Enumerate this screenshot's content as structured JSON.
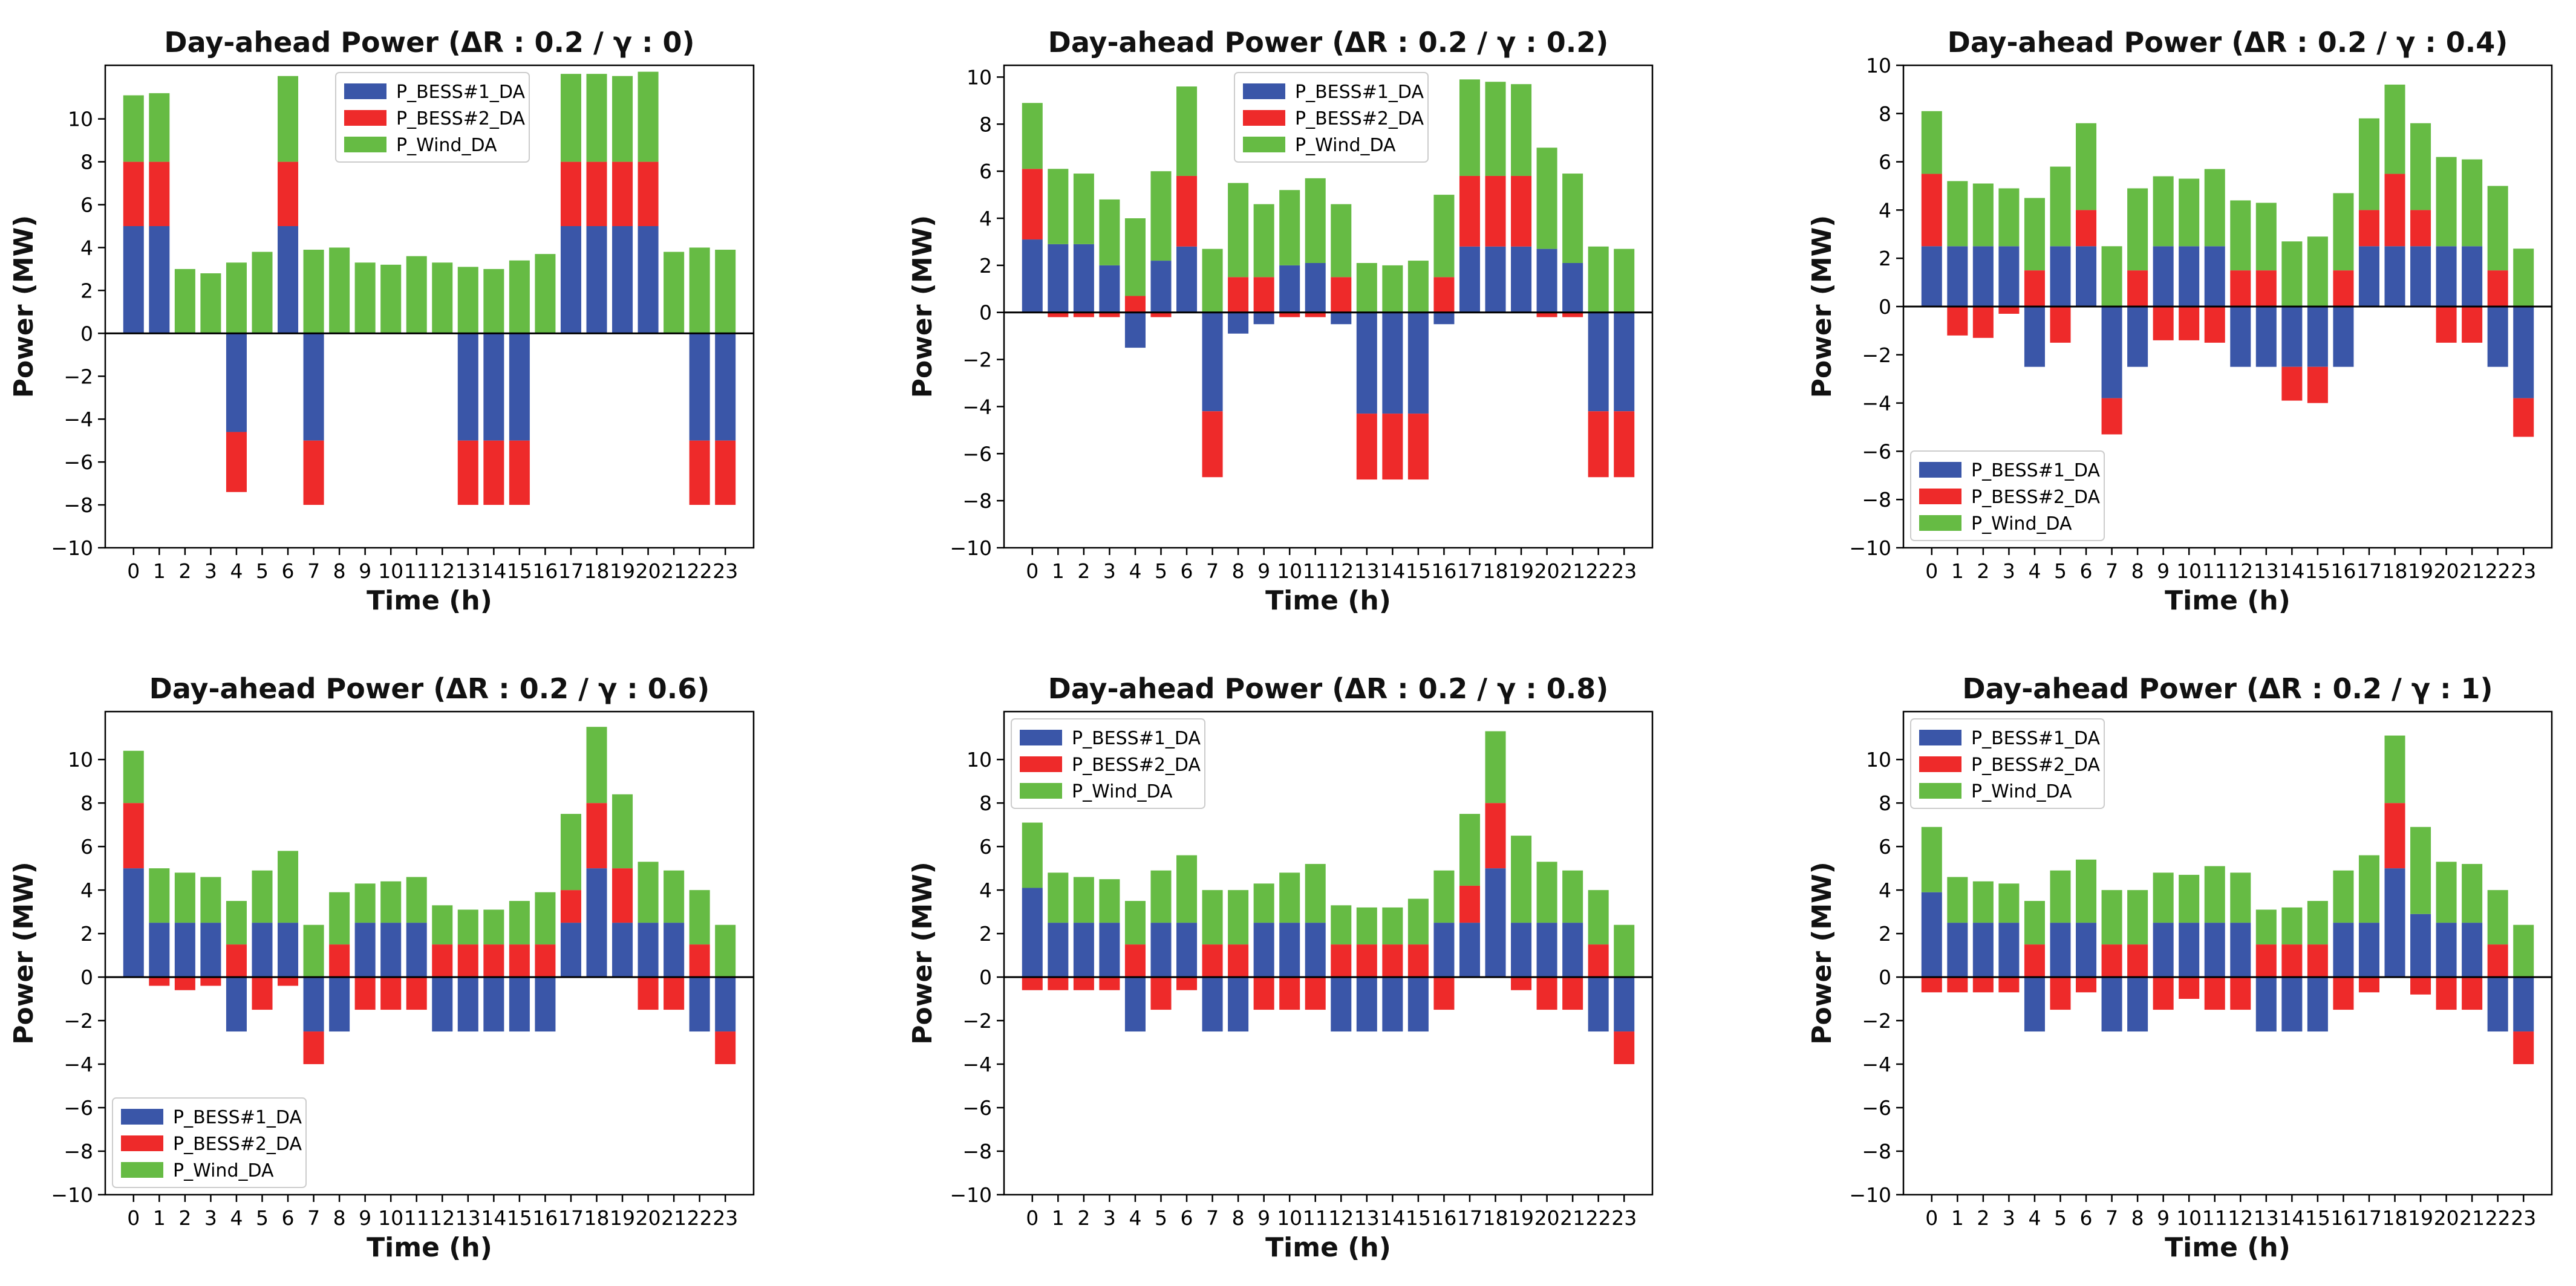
{
  "legend_labels": [
    "P_BESS#1_DA",
    "P_BESS#2_DA",
    "P_Wind_DA"
  ],
  "colors": {
    "bess1": "#3a56a8",
    "bess2": "#ee2a2a",
    "wind": "#66bb44",
    "axis": "#000000"
  },
  "chart_data": [
    {
      "type": "bar",
      "stacked": true,
      "title": "Day-ahead Power (ΔR : 0.2 / γ : 0)",
      "xlabel": "Time (h)",
      "ylabel": "Power (MW)",
      "ylim": [
        -10,
        12.5
      ],
      "yticks": [
        -10,
        -8,
        -6,
        -4,
        -2,
        0,
        2,
        4,
        6,
        8,
        10
      ],
      "categories": [
        "0",
        "1",
        "2",
        "3",
        "4",
        "5",
        "6",
        "7",
        "8",
        "9",
        "10",
        "11",
        "12",
        "13",
        "14",
        "15",
        "16",
        "17",
        "18",
        "19",
        "20",
        "21",
        "22",
        "23"
      ],
      "legend_position": "top-center",
      "series": [
        {
          "name": "P_BESS#1_DA",
          "values": [
            5,
            5,
            0,
            0,
            -4.6,
            0,
            5,
            -5,
            0,
            0,
            0,
            0,
            0,
            -5,
            -5,
            -5,
            0,
            5,
            5,
            5,
            5,
            0,
            -5,
            -5
          ]
        },
        {
          "name": "P_BESS#2_DA",
          "values": [
            3,
            3,
            0,
            0,
            -2.8,
            0,
            3,
            -3,
            0,
            0,
            0,
            0,
            0,
            -3,
            -3,
            -3,
            0,
            3,
            3,
            3,
            3,
            0,
            -3,
            -3
          ]
        },
        {
          "name": "P_Wind_DA",
          "values": [
            3.1,
            3.2,
            3,
            2.8,
            3.3,
            3.8,
            4,
            3.9,
            4,
            3.3,
            3.2,
            3.6,
            3.3,
            3.1,
            3,
            3.4,
            3.7,
            4.1,
            4.1,
            4,
            4.2,
            3.8,
            4,
            3.9
          ]
        }
      ]
    },
    {
      "type": "bar",
      "stacked": true,
      "title": "Day-ahead Power (ΔR : 0.2 / γ : 0.2)",
      "xlabel": "Time (h)",
      "ylabel": "Power (MW)",
      "ylim": [
        -10,
        10.5
      ],
      "yticks": [
        -10,
        -8,
        -6,
        -4,
        -2,
        0,
        2,
        4,
        6,
        8,
        10
      ],
      "categories": [
        "0",
        "1",
        "2",
        "3",
        "4",
        "5",
        "6",
        "7",
        "8",
        "9",
        "10",
        "11",
        "12",
        "13",
        "14",
        "15",
        "16",
        "17",
        "18",
        "19",
        "20",
        "21",
        "22",
        "23"
      ],
      "legend_position": "top-center",
      "series": [
        {
          "name": "P_BESS#1_DA",
          "values": [
            3.1,
            2.9,
            2.9,
            2,
            -1.5,
            2.2,
            2.8,
            -4.2,
            -0.9,
            -0.5,
            2,
            2.1,
            -0.5,
            -4.3,
            -4.3,
            -4.3,
            -0.5,
            2.8,
            2.8,
            2.8,
            2.7,
            2.1,
            -4.2,
            -4.2
          ]
        },
        {
          "name": "P_BESS#2_DA",
          "values": [
            3,
            -0.2,
            -0.2,
            -0.2,
            0.7,
            -0.2,
            3,
            -2.8,
            1.5,
            1.5,
            -0.2,
            -0.2,
            1.5,
            -2.8,
            -2.8,
            -2.8,
            1.5,
            3,
            3,
            3,
            -0.2,
            -0.2,
            -2.8,
            -2.8
          ]
        },
        {
          "name": "P_Wind_DA",
          "values": [
            2.8,
            3.2,
            3,
            2.8,
            3.3,
            3.8,
            3.8,
            2.7,
            4,
            3.1,
            3.2,
            3.6,
            3.1,
            2.1,
            2,
            2.2,
            3.5,
            4.1,
            4,
            3.9,
            4.3,
            3.8,
            2.8,
            2.7
          ]
        }
      ]
    },
    {
      "type": "bar",
      "stacked": true,
      "title": "Day-ahead Power (ΔR : 0.2 / γ : 0.4)",
      "xlabel": "Time (h)",
      "ylabel": "Power (MW)",
      "ylim": [
        -10,
        10
      ],
      "yticks": [
        -10,
        -8,
        -6,
        -4,
        -2,
        0,
        2,
        4,
        6,
        8,
        10
      ],
      "categories": [
        "0",
        "1",
        "2",
        "3",
        "4",
        "5",
        "6",
        "7",
        "8",
        "9",
        "10",
        "11",
        "12",
        "13",
        "14",
        "15",
        "16",
        "17",
        "18",
        "19",
        "20",
        "21",
        "22",
        "23"
      ],
      "legend_position": "bottom-left",
      "series": [
        {
          "name": "P_BESS#1_DA",
          "values": [
            2.5,
            2.5,
            2.5,
            2.5,
            -2.5,
            2.5,
            2.5,
            -3.8,
            -2.5,
            2.5,
            2.5,
            2.5,
            -2.5,
            -2.5,
            -2.5,
            -2.5,
            -2.5,
            2.5,
            2.5,
            2.5,
            2.5,
            2.5,
            -2.5,
            -3.8
          ]
        },
        {
          "name": "P_BESS#2_DA",
          "values": [
            3,
            -1.2,
            -1.3,
            -0.3,
            1.5,
            -1.5,
            1.5,
            -1.5,
            1.5,
            -1.4,
            -1.4,
            -1.5,
            1.5,
            1.5,
            -1.4,
            -1.5,
            1.5,
            1.5,
            3,
            1.5,
            -1.5,
            -1.5,
            1.5,
            -1.6
          ]
        },
        {
          "name": "P_Wind_DA",
          "values": [
            2.6,
            2.7,
            2.6,
            2.4,
            3,
            3.3,
            3.6,
            2.5,
            3.4,
            2.9,
            2.8,
            3.2,
            2.9,
            2.8,
            2.7,
            2.9,
            3.2,
            3.8,
            3.7,
            3.6,
            3.7,
            3.6,
            3.5,
            2.4
          ]
        }
      ]
    },
    {
      "type": "bar",
      "stacked": true,
      "title": "Day-ahead Power (ΔR : 0.2 / γ : 0.6)",
      "xlabel": "Time (h)",
      "ylabel": "Power (MW)",
      "ylim": [
        -10,
        12.2
      ],
      "yticks": [
        -10,
        -8,
        -6,
        -4,
        -2,
        0,
        2,
        4,
        6,
        8,
        10
      ],
      "categories": [
        "0",
        "1",
        "2",
        "3",
        "4",
        "5",
        "6",
        "7",
        "8",
        "9",
        "10",
        "11",
        "12",
        "13",
        "14",
        "15",
        "16",
        "17",
        "18",
        "19",
        "20",
        "21",
        "22",
        "23"
      ],
      "legend_position": "bottom-left",
      "series": [
        {
          "name": "P_BESS#1_DA",
          "values": [
            5,
            2.5,
            2.5,
            2.5,
            -2.5,
            2.5,
            2.5,
            -2.5,
            -2.5,
            2.5,
            2.5,
            2.5,
            -2.5,
            -2.5,
            -2.5,
            -2.5,
            -2.5,
            2.5,
            5,
            2.5,
            2.5,
            2.5,
            -2.5,
            -2.5
          ]
        },
        {
          "name": "P_BESS#2_DA",
          "values": [
            3,
            -0.4,
            -0.6,
            -0.4,
            1.5,
            -1.5,
            -0.4,
            -1.5,
            1.5,
            -1.5,
            -1.5,
            -1.5,
            1.5,
            1.5,
            1.5,
            1.5,
            1.5,
            1.5,
            3,
            2.5,
            -1.5,
            -1.5,
            1.5,
            -1.5
          ]
        },
        {
          "name": "P_Wind_DA",
          "values": [
            2.4,
            2.5,
            2.3,
            2.1,
            2,
            2.4,
            3.3,
            2.4,
            2.4,
            1.8,
            1.9,
            2.1,
            1.8,
            1.6,
            1.6,
            2,
            2.4,
            3.5,
            3.5,
            3.4,
            2.8,
            2.4,
            2.5,
            2.4
          ]
        }
      ]
    },
    {
      "type": "bar",
      "stacked": true,
      "title": "Day-ahead Power (ΔR : 0.2 / γ : 0.8)",
      "xlabel": "Time (h)",
      "ylabel": "Power (MW)",
      "ylim": [
        -10,
        12.2
      ],
      "yticks": [
        -10,
        -8,
        -6,
        -4,
        -2,
        0,
        2,
        4,
        6,
        8,
        10
      ],
      "categories": [
        "0",
        "1",
        "2",
        "3",
        "4",
        "5",
        "6",
        "7",
        "8",
        "9",
        "10",
        "11",
        "12",
        "13",
        "14",
        "15",
        "16",
        "17",
        "18",
        "19",
        "20",
        "21",
        "22",
        "23"
      ],
      "legend_position": "top-left",
      "series": [
        {
          "name": "P_BESS#1_DA",
          "values": [
            4.1,
            2.5,
            2.5,
            2.5,
            -2.5,
            2.5,
            2.5,
            -2.5,
            -2.5,
            2.5,
            2.5,
            2.5,
            -2.5,
            -2.5,
            -2.5,
            -2.5,
            2.5,
            2.5,
            5,
            2.5,
            2.5,
            2.5,
            -2.5,
            -2.5
          ]
        },
        {
          "name": "P_BESS#2_DA",
          "values": [
            -0.6,
            -0.6,
            -0.6,
            -0.6,
            1.5,
            -1.5,
            -0.6,
            1.5,
            1.5,
            -1.5,
            -1.5,
            -1.5,
            1.5,
            1.5,
            1.5,
            1.5,
            -1.5,
            1.7,
            3,
            -0.6,
            -1.5,
            -1.5,
            1.5,
            -1.5
          ]
        },
        {
          "name": "P_Wind_DA",
          "values": [
            3,
            2.3,
            2.1,
            2,
            2,
            2.4,
            3.1,
            2.5,
            2.5,
            1.8,
            2.3,
            2.7,
            1.8,
            1.7,
            1.7,
            2.1,
            2.4,
            3.3,
            3.3,
            4,
            2.8,
            2.4,
            2.5,
            2.4
          ]
        }
      ]
    },
    {
      "type": "bar",
      "stacked": true,
      "title": "Day-ahead Power (ΔR : 0.2 / γ : 1)",
      "xlabel": "Time (h)",
      "ylabel": "Power (MW)",
      "ylim": [
        -10,
        12.2
      ],
      "yticks": [
        -10,
        -8,
        -6,
        -4,
        -2,
        0,
        2,
        4,
        6,
        8,
        10
      ],
      "categories": [
        "0",
        "1",
        "2",
        "3",
        "4",
        "5",
        "6",
        "7",
        "8",
        "9",
        "10",
        "11",
        "12",
        "13",
        "14",
        "15",
        "16",
        "17",
        "18",
        "19",
        "20",
        "21",
        "22",
        "23"
      ],
      "legend_position": "top-left",
      "series": [
        {
          "name": "P_BESS#1_DA",
          "values": [
            3.9,
            2.5,
            2.5,
            2.5,
            -2.5,
            2.5,
            2.5,
            -2.5,
            -2.5,
            2.5,
            2.5,
            2.5,
            2.5,
            -2.5,
            -2.5,
            -2.5,
            2.5,
            2.5,
            5,
            2.9,
            2.5,
            2.5,
            -2.5,
            -2.5
          ]
        },
        {
          "name": "P_BESS#2_DA",
          "values": [
            -0.7,
            -0.7,
            -0.7,
            -0.7,
            1.5,
            -1.5,
            -0.7,
            1.5,
            1.5,
            -1.5,
            -1,
            -1.5,
            -1.5,
            1.5,
            1.5,
            1.5,
            -1.5,
            -0.7,
            3,
            -0.8,
            -1.5,
            -1.5,
            1.5,
            -1.5
          ]
        },
        {
          "name": "P_Wind_DA",
          "values": [
            3,
            2.1,
            1.9,
            1.8,
            2,
            2.4,
            2.9,
            2.5,
            2.5,
            2.3,
            2.2,
            2.6,
            2.3,
            1.6,
            1.7,
            2,
            2.4,
            3.1,
            3.1,
            4,
            2.8,
            2.7,
            2.5,
            2.4
          ]
        }
      ]
    }
  ]
}
